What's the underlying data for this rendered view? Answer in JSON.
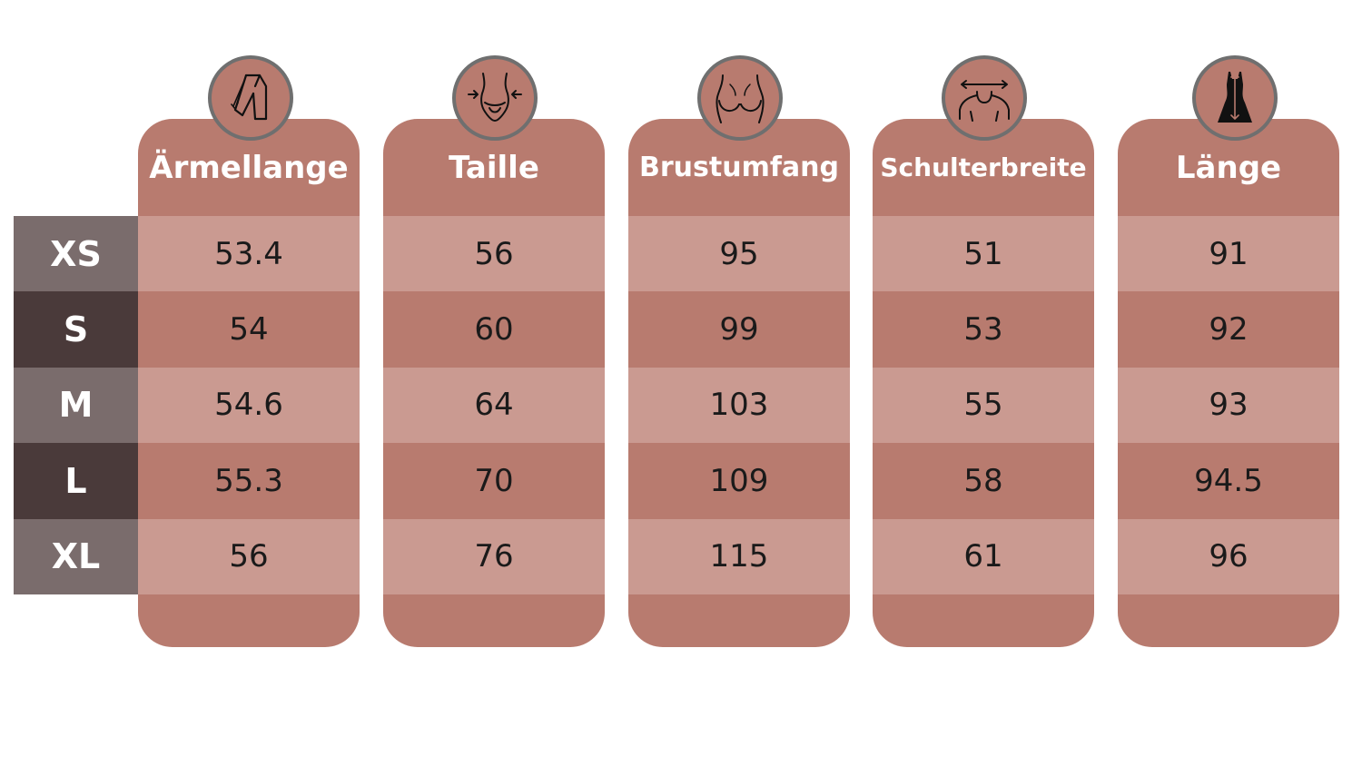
{
  "sizes": [
    "XS",
    "S",
    "M",
    "L",
    "XL"
  ],
  "columns": [
    {
      "label": "Ärmellange",
      "icon": "sleeve-length-icon",
      "values": [
        "53.4",
        "54",
        "54.6",
        "55.3",
        "56"
      ]
    },
    {
      "label": "Taille",
      "icon": "waist-icon",
      "values": [
        "56",
        "60",
        "64",
        "70",
        "76"
      ]
    },
    {
      "label": "Brustumfang",
      "icon": "bust-icon",
      "values": [
        "95",
        "99",
        "103",
        "109",
        "115"
      ]
    },
    {
      "label": "Schulterbreite",
      "icon": "shoulder-width-icon",
      "values": [
        "51",
        "53",
        "55",
        "58",
        "61"
      ]
    },
    {
      "label": "Länge",
      "icon": "dress-length-icon",
      "values": [
        "91",
        "92",
        "93",
        "94.5",
        "96"
      ]
    }
  ],
  "colors": {
    "column": "#b87b6f",
    "row_light": "#ca9a91",
    "size_light": "#7a6c6c",
    "size_dark": "#4a3a3a",
    "icon_border": "#6f6f6f"
  }
}
